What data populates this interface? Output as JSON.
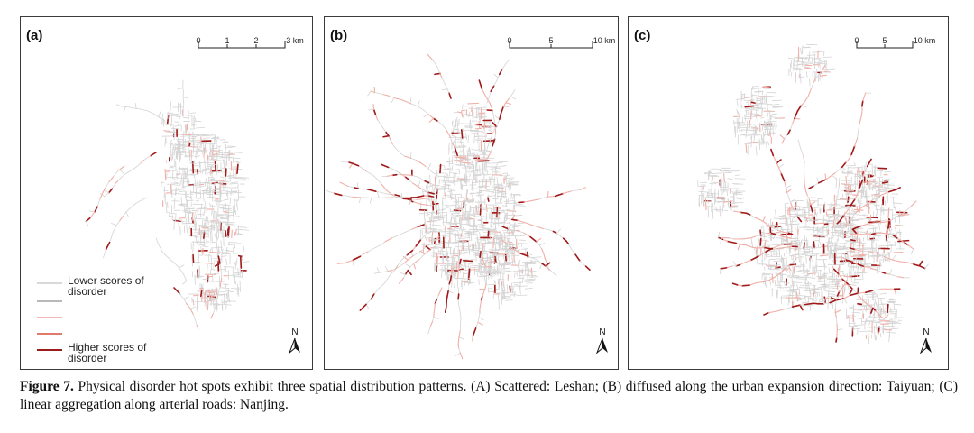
{
  "panels": [
    {
      "label": "(a)",
      "scale_ticks": [
        "0",
        "1",
        "2",
        "3 km"
      ],
      "north": "N",
      "legend": [
        {
          "text": "Lower scores of disorder",
          "color": "#d9d9d9"
        },
        {
          "text": "",
          "color": "#b9b9b9"
        },
        {
          "text": "",
          "color": "#f2b8b8"
        },
        {
          "text": "",
          "color": "#e07a6a"
        },
        {
          "text": "Higher scores of disorder",
          "color": "#9b1c1c"
        }
      ]
    },
    {
      "label": "(b)",
      "scale_ticks": [
        "0",
        "5",
        "10 km"
      ],
      "north": "N"
    },
    {
      "label": "(c)",
      "scale_ticks": [
        "0",
        "5",
        "10 km"
      ],
      "north": "N"
    }
  ],
  "caption": {
    "prefix": "Figure 7.",
    "text": " Physical disorder hot spots exhibit three spatial distribution patterns. (A) Scattered: Leshan; (B) diffused along the urban expansion direction: Taiyuan; (C) linear aggregation along arterial roads: Nanjing."
  },
  "colors": {
    "low": "#d4d4d4",
    "mid": "#f0b0a8",
    "high": "#a01818"
  }
}
